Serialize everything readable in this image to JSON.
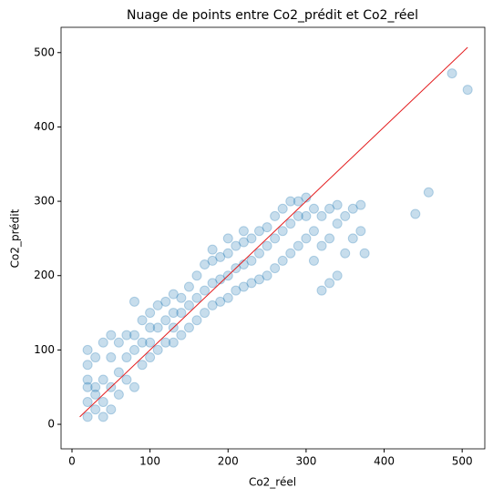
{
  "chart_data": {
    "type": "scatter",
    "title": "Nuage de points entre Co2_prédit et Co2_réel",
    "x_label": "Co2_réel",
    "y_label": "Co2_prédit",
    "xlim": [
      -14,
      529
    ],
    "ylim": [
      -33,
      534
    ],
    "xticks": [
      0,
      100,
      200,
      300,
      400,
      500
    ],
    "yticks": [
      0,
      100,
      200,
      300,
      400,
      500
    ],
    "series": [
      {
        "color": "#1f77b4",
        "x": [
          20,
          20,
          20,
          20,
          20,
          20,
          30,
          30,
          30,
          30,
          40,
          40,
          40,
          40,
          50,
          50,
          50,
          50,
          60,
          60,
          60,
          70,
          70,
          70,
          80,
          80,
          80,
          80,
          90,
          90,
          90,
          100,
          100,
          100,
          100,
          110,
          110,
          110,
          120,
          120,
          120,
          130,
          130,
          130,
          130,
          140,
          140,
          140,
          150,
          150,
          150,
          160,
          160,
          160,
          170,
          170,
          170,
          180,
          180,
          180,
          180,
          190,
          190,
          190,
          200,
          200,
          200,
          200,
          210,
          210,
          210,
          220,
          220,
          220,
          220,
          230,
          230,
          230,
          240,
          240,
          240,
          250,
          250,
          250,
          260,
          260,
          260,
          270,
          270,
          270,
          280,
          280,
          280,
          290,
          290,
          290,
          300,
          300,
          300,
          310,
          310,
          310,
          320,
          320,
          320,
          330,
          330,
          330,
          340,
          340,
          340,
          350,
          350,
          360,
          360,
          370,
          370,
          375,
          440,
          457,
          487,
          507
        ],
        "values": [
          10,
          30,
          60,
          100,
          80,
          50,
          20,
          50,
          90,
          40,
          10,
          30,
          60,
          110,
          20,
          50,
          90,
          120,
          40,
          70,
          110,
          60,
          90,
          120,
          50,
          100,
          165,
          120,
          80,
          110,
          140,
          90,
          110,
          130,
          150,
          100,
          130,
          160,
          110,
          140,
          165,
          110,
          130,
          150,
          175,
          120,
          150,
          170,
          130,
          160,
          185,
          140,
          170,
          200,
          150,
          180,
          215,
          160,
          190,
          220,
          235,
          165,
          195,
          225,
          170,
          200,
          230,
          250,
          180,
          210,
          240,
          185,
          215,
          245,
          260,
          190,
          220,
          250,
          195,
          230,
          260,
          200,
          240,
          265,
          210,
          250,
          280,
          220,
          260,
          290,
          230,
          270,
          300,
          240,
          280,
          300,
          250,
          280,
          305,
          220,
          260,
          290,
          180,
          240,
          280,
          190,
          250,
          290,
          200,
          270,
          295,
          230,
          280,
          250,
          290,
          260,
          295,
          230,
          283,
          312,
          472,
          450
        ]
      }
    ],
    "fit_line": {
      "color": "#e31a1c",
      "x": [
        10,
        507
      ],
      "values": [
        10,
        507
      ]
    }
  }
}
